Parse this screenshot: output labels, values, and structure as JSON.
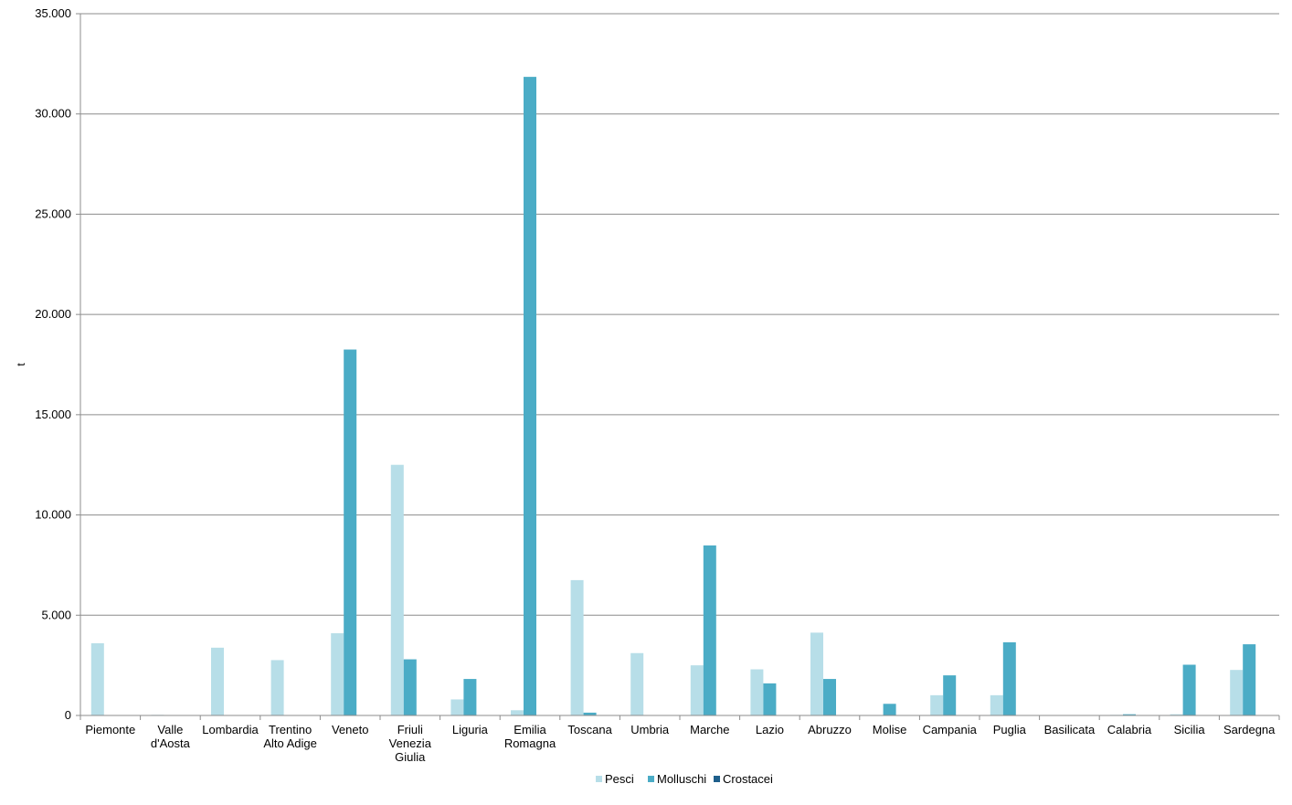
{
  "chart_data": {
    "type": "bar",
    "title": "",
    "xlabel": "",
    "ylabel": "t",
    "ylim": [
      0,
      35000
    ],
    "yticks": [
      0,
      5000,
      10000,
      15000,
      20000,
      25000,
      30000,
      35000
    ],
    "ytick_labels": [
      "0",
      "5.000",
      "10.000",
      "15.000",
      "20.000",
      "25.000",
      "30.000",
      "35.000"
    ],
    "grid": true,
    "legend_position": "bottom",
    "categories": [
      [
        "Piemonte"
      ],
      [
        "Valle",
        "d'Aosta"
      ],
      [
        "Lombardia"
      ],
      [
        "Trentino",
        "Alto Adige"
      ],
      [
        "Veneto"
      ],
      [
        "Friuli",
        "Venezia",
        "Giulia"
      ],
      [
        "Liguria"
      ],
      [
        "Emilia",
        "Romagna"
      ],
      [
        "Toscana"
      ],
      [
        "Umbria"
      ],
      [
        "Marche"
      ],
      [
        "Lazio"
      ],
      [
        "Abruzzo"
      ],
      [
        "Molise"
      ],
      [
        "Campania"
      ],
      [
        "Puglia"
      ],
      [
        "Basilicata"
      ],
      [
        "Calabria"
      ],
      [
        "Sicilia"
      ],
      [
        "Sardegna"
      ]
    ],
    "series": [
      {
        "name": "Pesci",
        "color": "#b7dee8",
        "values": [
          3600,
          30,
          3380,
          2760,
          4100,
          12500,
          800,
          260,
          6750,
          3110,
          2500,
          2300,
          4130,
          0,
          1010,
          1010,
          0,
          30,
          60,
          2270
        ]
      },
      {
        "name": "Molluschi",
        "color": "#4bacc6",
        "values": [
          0,
          0,
          0,
          0,
          18250,
          2800,
          1820,
          31850,
          140,
          0,
          8480,
          1600,
          1820,
          580,
          2000,
          3650,
          0,
          60,
          2530,
          3550
        ]
      },
      {
        "name": "Crostacei",
        "color": "#1f5f8b",
        "values": [
          0,
          0,
          0,
          0,
          0,
          0,
          0,
          0,
          0,
          0,
          0,
          0,
          0,
          0,
          0,
          0,
          0,
          0,
          0,
          0
        ]
      }
    ]
  }
}
